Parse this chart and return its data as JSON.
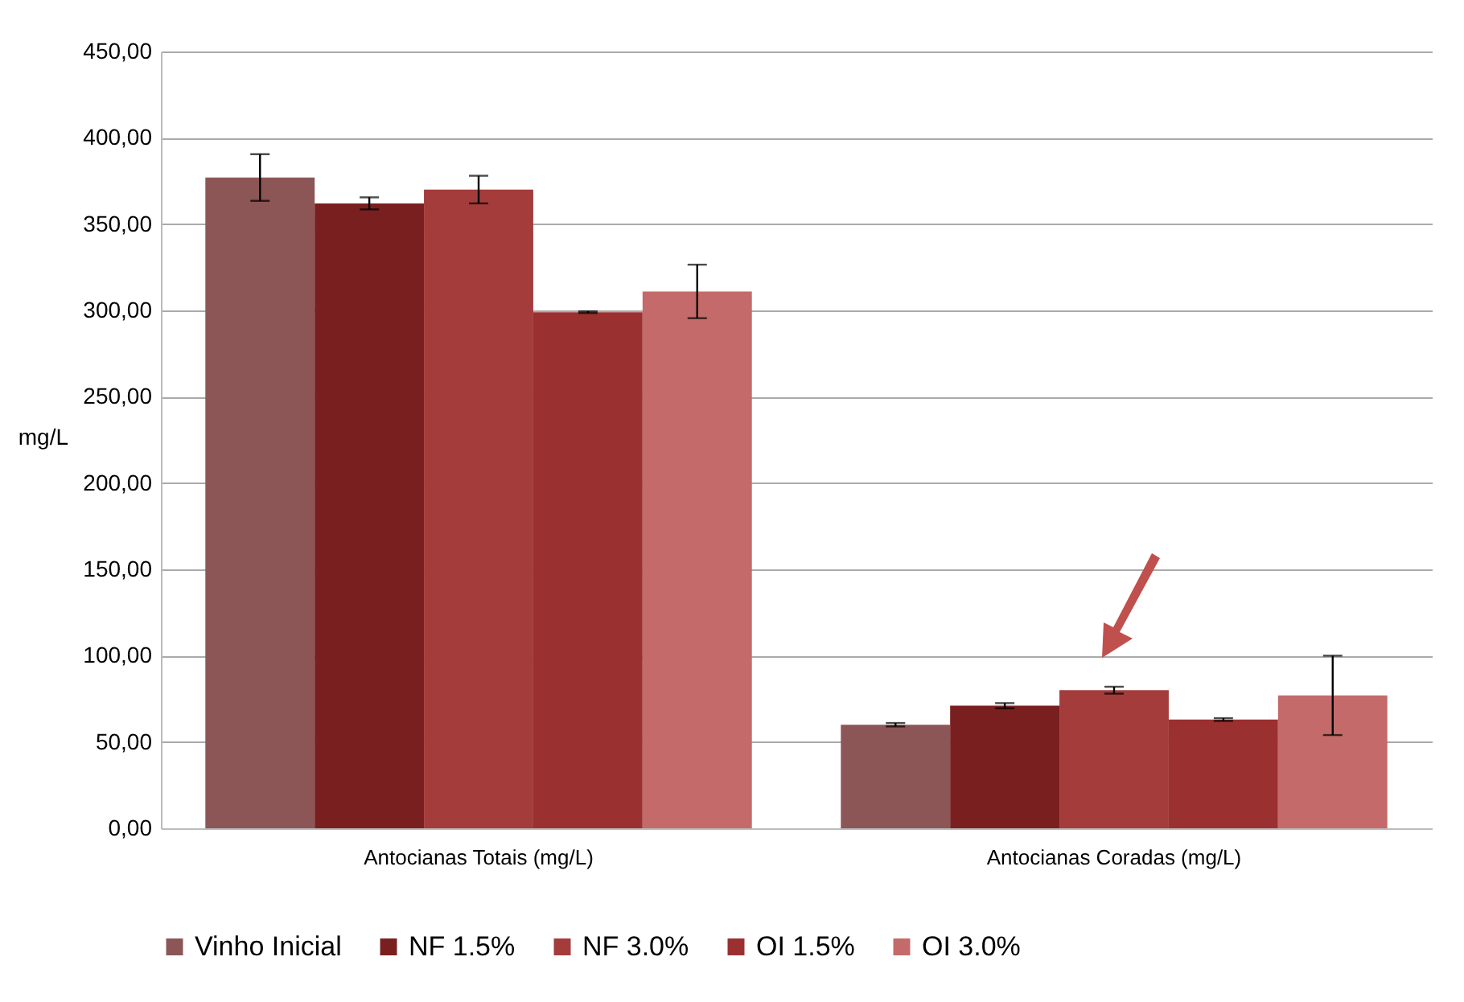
{
  "chart_data": {
    "type": "bar",
    "ylabel": "mg/L",
    "categories": [
      "Antocianas Totais (mg/L)",
      "Antocianas Coradas (mg/L)"
    ],
    "series": [
      {
        "name": "Vinho Inicial",
        "color": "#8c5656",
        "values": [
          377,
          60
        ],
        "errors": [
          13.5,
          1
        ]
      },
      {
        "name": "NF 1.5%",
        "color": "#7a1f1f",
        "values": [
          362,
          71
        ],
        "errors": [
          3.5,
          1.5
        ]
      },
      {
        "name": "NF 3.0%",
        "color": "#a43c3c",
        "values": [
          370,
          80
        ],
        "errors": [
          8,
          2
        ]
      },
      {
        "name": "OI 1.5%",
        "color": "#9b3030",
        "values": [
          299,
          63
        ],
        "errors": [
          0.5,
          0.8
        ]
      },
      {
        "name": "OI 3.0%",
        "color": "#c46a6a",
        "values": [
          311,
          77
        ],
        "errors": [
          15.5,
          23
        ]
      }
    ],
    "ylim": [
      0,
      450
    ],
    "yticks": [
      {
        "value": 0,
        "label": "0,00"
      },
      {
        "value": 50,
        "label": "50,00"
      },
      {
        "value": 100,
        "label": "100,00"
      },
      {
        "value": 150,
        "label": "150,00"
      },
      {
        "value": 200,
        "label": "200,00"
      },
      {
        "value": 250,
        "label": "250,00"
      },
      {
        "value": 300,
        "label": "300,00"
      },
      {
        "value": 350,
        "label": "350,00"
      },
      {
        "value": 400,
        "label": "400,00"
      },
      {
        "value": 450,
        "label": "450,00"
      }
    ],
    "grid": "y",
    "legend": "bottom"
  }
}
